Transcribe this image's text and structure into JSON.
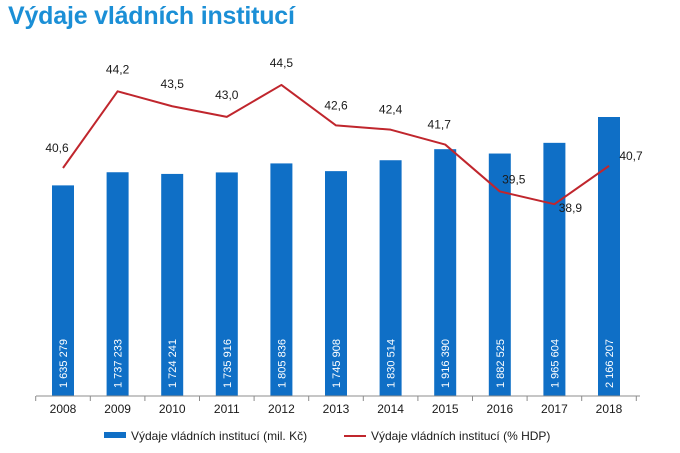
{
  "title": "Výdaje vládních institucí",
  "colors": {
    "bar": "#0f6fc6",
    "line": "#c0262d",
    "title": "#1b8fd6"
  },
  "chart_data": {
    "type": "bar+line",
    "title": "Výdaje vládních institucí",
    "categories": [
      "2008",
      "2009",
      "2010",
      "2011",
      "2012",
      "2013",
      "2014",
      "2015",
      "2016",
      "2017",
      "2018"
    ],
    "series": [
      {
        "name": "Výdaje vládních institucí (mil. Kč)",
        "type": "bar",
        "values": [
          1635279,
          1737233,
          1724241,
          1735916,
          1805836,
          1745908,
          1830514,
          1916390,
          1882525,
          1965604,
          2166207
        ],
        "labels": [
          "1 635 279",
          "1 737 233",
          "1 724 241",
          "1 735 916",
          "1 805 836",
          "1 745 908",
          "1 830 514",
          "1 916 390",
          "1 882 525",
          "1 965 604",
          "2 166 207"
        ]
      },
      {
        "name": "Výdaje vládních institucí (% HDP)",
        "type": "line",
        "values": [
          40.6,
          44.2,
          43.5,
          43.0,
          44.5,
          42.6,
          42.4,
          41.7,
          39.5,
          38.9,
          40.7
        ],
        "labels": [
          "40,6",
          "44,2",
          "43,5",
          "43,0",
          "44,5",
          "42,6",
          "42,4",
          "41,7",
          "39,5",
          "38,9",
          "40,7"
        ]
      }
    ],
    "legend": "bottom",
    "grid": false
  }
}
